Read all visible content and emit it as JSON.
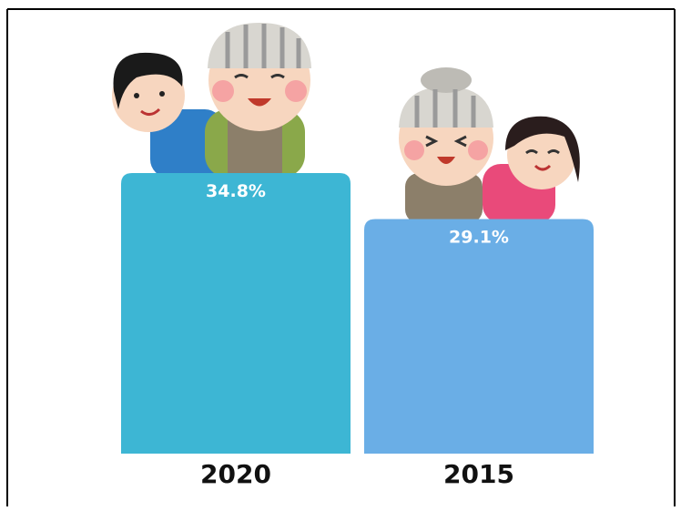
{
  "chart_data": {
    "type": "bar",
    "categories": [
      "2020",
      "2015"
    ],
    "values": [
      34.8,
      29.1
    ],
    "value_labels": [
      "34.8%",
      "29.1%"
    ],
    "colors": [
      "#3db6d4",
      "#6aaee6"
    ]
  }
}
